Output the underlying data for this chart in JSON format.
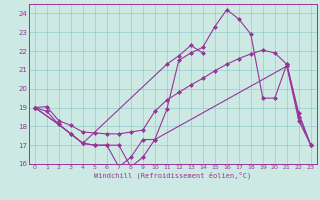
{
  "xlabel": "Windchill (Refroidissement éolien,°C)",
  "bg_color": "#cce9e4",
  "line_color": "#993399",
  "grid_color": "#99cccc",
  "xlim": [
    -0.5,
    23.5
  ],
  "ylim": [
    16,
    24.5
  ],
  "yticks": [
    16,
    17,
    18,
    19,
    20,
    21,
    22,
    23,
    24
  ],
  "xticks": [
    0,
    1,
    2,
    3,
    4,
    5,
    6,
    7,
    8,
    9,
    10,
    11,
    12,
    13,
    14,
    15,
    16,
    17,
    18,
    19,
    20,
    21,
    22,
    23
  ],
  "line1_x": [
    0,
    1,
    2,
    3,
    4,
    5,
    6,
    7,
    8,
    9,
    10,
    21,
    22,
    23
  ],
  "line1_y": [
    19,
    18.8,
    18.1,
    17.6,
    17.1,
    17.0,
    17.0,
    15.85,
    16.35,
    17.3,
    17.3,
    21.2,
    18.3,
    17.0
  ],
  "line2_x": [
    0,
    2,
    4,
    11,
    12,
    13,
    14
  ],
  "line2_y": [
    19,
    18.1,
    17.1,
    21.3,
    21.75,
    22.3,
    21.9
  ],
  "line3_x": [
    0,
    2,
    3,
    4,
    5,
    6,
    7,
    8,
    9,
    10,
    11,
    12,
    13,
    14,
    15,
    16,
    17,
    18,
    19,
    20,
    21,
    22,
    23
  ],
  "line3_y": [
    19,
    18.1,
    17.6,
    17.1,
    17.0,
    17.0,
    17.0,
    15.85,
    16.35,
    17.3,
    18.9,
    21.5,
    21.9,
    22.2,
    23.3,
    24.2,
    23.7,
    22.9,
    19.5,
    19.5,
    21.3,
    18.7,
    17.0
  ],
  "line4_x": [
    0,
    1,
    2,
    3,
    4,
    5,
    6,
    7,
    8,
    9,
    10,
    11,
    12,
    13,
    14,
    15,
    16,
    17,
    18,
    19,
    20,
    21,
    22,
    23
  ],
  "line4_y": [
    19,
    19.05,
    18.3,
    18.05,
    17.7,
    17.65,
    17.6,
    17.6,
    17.7,
    17.8,
    18.8,
    19.4,
    19.8,
    20.2,
    20.55,
    20.95,
    21.3,
    21.6,
    21.85,
    22.05,
    21.9,
    21.3,
    18.5,
    17.0
  ]
}
